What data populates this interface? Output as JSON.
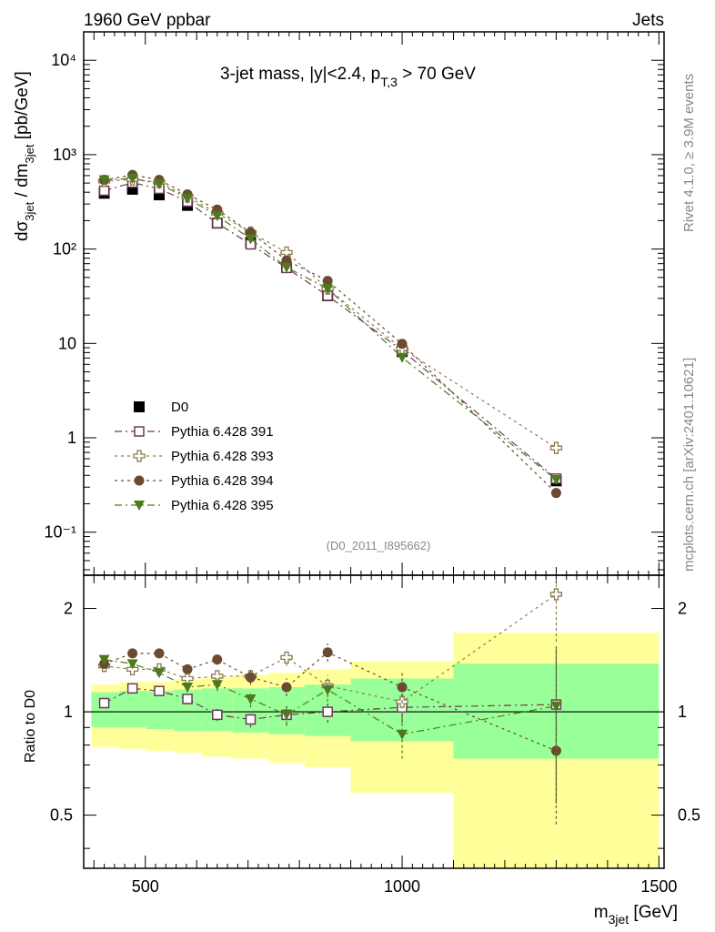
{
  "header": {
    "left": "1960 GeV ppbar",
    "right": "Jets",
    "title": "3-jet mass, |y|<2.4, p",
    "title_sub": "T,3",
    "title_tail": " > 70 GeV"
  },
  "side_labels": {
    "rivet": "Rivet 4.1.0, ≥ 3.9M events",
    "mcplots": "mcplots.cern.ch [arXiv:2401.10621]"
  },
  "reference": "(D0_2011_I895662)",
  "axes": {
    "ylabel_main": "dσ",
    "ylabel_main_sub1": "3jet",
    "ylabel_main_mid": " / dm",
    "ylabel_main_sub2": "3jet",
    "ylabel_main_units": " [pb/GeV]",
    "ylabel_ratio": "Ratio to D0",
    "xlabel": "m",
    "xlabel_sub": "3jet",
    "xlabel_units": " [GeV]"
  },
  "chart_data": [
    {
      "type": "scatter",
      "panel": "main",
      "yscale": "log",
      "xlim": [
        380,
        1510
      ],
      "ylim": [
        0.035,
        20000
      ],
      "x_ticks": [
        500,
        1000,
        1500
      ],
      "x_tick_labels": [
        "500",
        "1000",
        "1500"
      ],
      "y_ticks": [
        0.1,
        1,
        10,
        100,
        1000,
        10000
      ],
      "y_tick_labels": [
        "10⁻¹",
        "1",
        "10",
        "10²",
        "10³",
        "10⁴"
      ],
      "x": [
        420,
        475,
        527,
        582,
        640,
        705,
        775,
        855,
        1000,
        1300
      ],
      "series": [
        {
          "name": "D0",
          "color": "#000000",
          "marker": "square-filled",
          "values": [
            390,
            430,
            375,
            290,
            188,
            117,
            64,
            32,
            8.2,
            0.35
          ]
        },
        {
          "name": "Pythia 6.428 391",
          "color": "#6b3a55",
          "marker": "square-open",
          "dash": "8,4,2,4",
          "values": [
            415,
            505,
            435,
            318,
            188,
            112,
            63,
            32,
            8.4,
            0.37
          ]
        },
        {
          "name": "Pythia 6.428 393",
          "color": "#8a7a4a",
          "marker": "cross-open",
          "dash": "3,4",
          "values": [
            525,
            545,
            510,
            360,
            240,
            150,
            92,
            38,
            8.8,
            0.78
          ]
        },
        {
          "name": "Pythia 6.428 394",
          "color": "#6b4a30",
          "marker": "circle-filled",
          "dash": "3,4",
          "values": [
            540,
            610,
            540,
            380,
            262,
            150,
            76,
            46,
            9.9,
            0.26
          ]
        },
        {
          "name": "Pythia 6.428 395",
          "color": "#4d7a1c",
          "marker": "triangle-down",
          "dash": "8,4,2,4",
          "values": [
            540,
            560,
            490,
            345,
            225,
            128,
            64,
            38,
            7.1,
            0.36
          ]
        }
      ]
    },
    {
      "type": "scatter",
      "panel": "ratio",
      "yscale": "log",
      "xlim": [
        380,
        1510
      ],
      "ylim": [
        0.35,
        2.5
      ],
      "y_ticks": [
        0.5,
        1,
        2
      ],
      "y_tick_labels": [
        "0.5",
        "1",
        "2"
      ],
      "x": [
        420,
        475,
        527,
        582,
        640,
        705,
        775,
        855,
        1000,
        1300
      ],
      "bands": [
        {
          "x0": 395,
          "x1": 450,
          "green": [
            0.9,
            1.14
          ],
          "yellow": [
            0.79,
            1.2
          ]
        },
        {
          "x0": 450,
          "x1": 502,
          "green": [
            0.9,
            1.15
          ],
          "yellow": [
            0.78,
            1.22
          ]
        },
        {
          "x0": 502,
          "x1": 555,
          "green": [
            0.89,
            1.15
          ],
          "yellow": [
            0.77,
            1.22
          ]
        },
        {
          "x0": 555,
          "x1": 610,
          "green": [
            0.88,
            1.16
          ],
          "yellow": [
            0.76,
            1.24
          ]
        },
        {
          "x0": 610,
          "x1": 670,
          "green": [
            0.88,
            1.17
          ],
          "yellow": [
            0.74,
            1.26
          ]
        },
        {
          "x0": 670,
          "x1": 740,
          "green": [
            0.87,
            1.17
          ],
          "yellow": [
            0.73,
            1.28
          ]
        },
        {
          "x0": 740,
          "x1": 810,
          "green": [
            0.86,
            1.18
          ],
          "yellow": [
            0.71,
            1.3
          ]
        },
        {
          "x0": 810,
          "x1": 900,
          "green": [
            0.85,
            1.2
          ],
          "yellow": [
            0.69,
            1.33
          ]
        },
        {
          "x0": 900,
          "x1": 1100,
          "green": [
            0.82,
            1.25
          ],
          "yellow": [
            0.58,
            1.4
          ]
        },
        {
          "x0": 1100,
          "x1": 1500,
          "green": [
            0.73,
            1.38
          ],
          "yellow": [
            0.34,
            1.7
          ]
        }
      ],
      "series": [
        {
          "name": "Pythia 6.428 391",
          "values": [
            1.06,
            1.17,
            1.15,
            1.09,
            0.98,
            0.95,
            0.98,
            1.0,
            1.03,
            1.05
          ],
          "errors": [
            0.03,
            0.03,
            0.03,
            0.04,
            0.04,
            0.05,
            0.06,
            0.07,
            0.1,
            0.5
          ]
        },
        {
          "name": "Pythia 6.428 393",
          "values": [
            1.36,
            1.33,
            1.33,
            1.25,
            1.27,
            1.27,
            1.44,
            1.19,
            1.07,
            2.2
          ],
          "errors": [
            0.03,
            0.03,
            0.04,
            0.04,
            0.05,
            0.06,
            0.08,
            0.09,
            0.12,
            0.6
          ]
        },
        {
          "name": "Pythia 6.428 394",
          "values": [
            1.38,
            1.48,
            1.48,
            1.33,
            1.42,
            1.26,
            1.18,
            1.49,
            1.18,
            0.77
          ],
          "errors": [
            0.04,
            0.04,
            0.04,
            0.04,
            0.05,
            0.06,
            0.07,
            0.09,
            0.12,
            0.3
          ]
        },
        {
          "name": "Pythia 6.428 395",
          "values": [
            1.42,
            1.38,
            1.3,
            1.18,
            1.2,
            1.09,
            0.98,
            1.16,
            0.86,
            1.04
          ],
          "errors": [
            0.04,
            0.04,
            0.04,
            0.04,
            0.05,
            0.06,
            0.07,
            0.09,
            0.13,
            0.5
          ]
        }
      ]
    }
  ]
}
